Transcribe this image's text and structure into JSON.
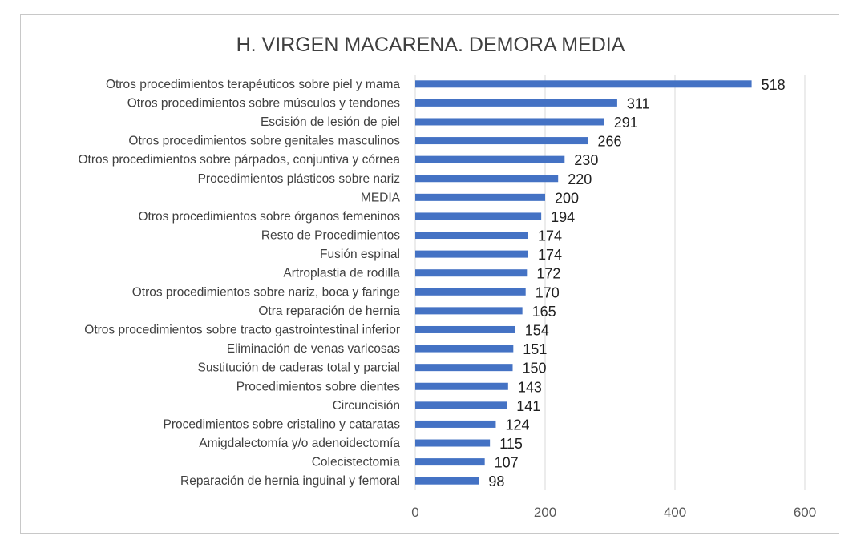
{
  "chart_data": {
    "type": "bar",
    "orientation": "horizontal",
    "title": "H. VIRGEN MACARENA. DEMORA MEDIA",
    "xlabel": "",
    "ylabel": "",
    "xlim": [
      0,
      600
    ],
    "xticks": [
      0,
      200,
      400,
      600
    ],
    "grid": true,
    "legend": "none",
    "bar_color": "#4472C4",
    "categories": [
      "Otros procedimientos terapéuticos sobre piel y mama",
      "Otros procedimientos sobre músculos y tendones",
      "Escisión de lesión de piel",
      "Otros procedimientos sobre genitales masculinos",
      "Otros procedimientos sobre párpados, conjuntiva y córnea",
      "Procedimientos plásticos sobre nariz",
      "MEDIA",
      "Otros procedimientos sobre órganos femeninos",
      "Resto de Procedimientos",
      "Fusión espinal",
      "Artroplastia de rodilla",
      "Otros procedimientos sobre nariz, boca y faringe",
      "Otra reparación de hernia",
      "Otros procedimientos sobre tracto gastrointestinal inferior",
      "Eliminación de venas varicosas",
      "Sustitución de caderas total y parcial",
      "Procedimientos sobre dientes",
      "Circuncisión",
      "Procedimientos sobre cristalino y cataratas",
      "Amigdalectomía y/o adenoidectomía",
      "Colecistectomía",
      "Reparación de hernia inguinal y femoral"
    ],
    "values": [
      518,
      311,
      291,
      266,
      230,
      220,
      200,
      194,
      174,
      174,
      172,
      170,
      165,
      154,
      151,
      150,
      143,
      141,
      124,
      115,
      107,
      98
    ]
  }
}
